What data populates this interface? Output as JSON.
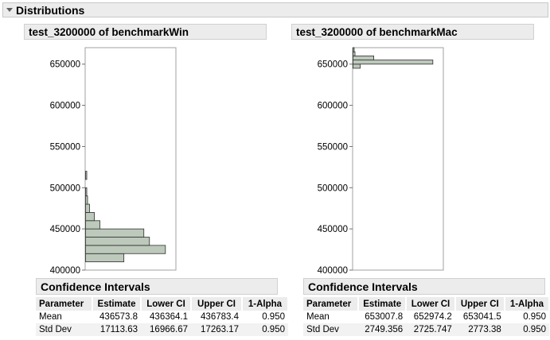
{
  "outline": {
    "title": "Distributions"
  },
  "panels": [
    {
      "id": "win",
      "title": "test_3200000 of benchmarkWin",
      "ci_title": "Confidence Intervals",
      "ci_columns": [
        "Parameter",
        "Estimate",
        "Lower CI",
        "Upper CI",
        "1-Alpha"
      ],
      "ci_rows": [
        [
          "Mean",
          "436573.8",
          "436364.1",
          "436783.4",
          "0.950"
        ],
        [
          "Std Dev",
          "17113.63",
          "16966.67",
          "17263.17",
          "0.950"
        ]
      ]
    },
    {
      "id": "mac",
      "title": "test_3200000 of benchmarkMac",
      "ci_title": "Confidence Intervals",
      "ci_columns": [
        "Parameter",
        "Estimate",
        "Lower CI",
        "Upper CI",
        "1-Alpha"
      ],
      "ci_rows": [
        [
          "Mean",
          "653007.8",
          "652974.2",
          "653041.5",
          "0.950"
        ],
        [
          "Std Dev",
          "2749.356",
          "2725.747",
          "2773.38",
          "0.950"
        ]
      ]
    }
  ],
  "chart_data": [
    {
      "type": "bar",
      "orientation": "horizontal-histogram",
      "title": "test_3200000 of benchmarkWin",
      "ylim": [
        400000,
        670000
      ],
      "yticks": [
        400000,
        450000,
        500000,
        550000,
        600000,
        650000
      ],
      "bins": [
        {
          "lo": 410000,
          "hi": 420000,
          "relcount": 0.48
        },
        {
          "lo": 420000,
          "hi": 430000,
          "relcount": 1.0
        },
        {
          "lo": 430000,
          "hi": 440000,
          "relcount": 0.8
        },
        {
          "lo": 440000,
          "hi": 450000,
          "relcount": 0.73
        },
        {
          "lo": 450000,
          "hi": 460000,
          "relcount": 0.18
        },
        {
          "lo": 460000,
          "hi": 470000,
          "relcount": 0.11
        },
        {
          "lo": 470000,
          "hi": 480000,
          "relcount": 0.05
        },
        {
          "lo": 480000,
          "hi": 490000,
          "relcount": 0.025
        },
        {
          "lo": 490000,
          "hi": 500000,
          "relcount": 0.015
        },
        {
          "lo": 510000,
          "hi": 520000,
          "relcount": 0.015
        }
      ],
      "bar_color": "#bdc9bb"
    },
    {
      "type": "bar",
      "orientation": "horizontal-histogram",
      "title": "test_3200000 of benchmarkMac",
      "ylim": [
        400000,
        670000
      ],
      "yticks": [
        400000,
        450000,
        500000,
        550000,
        600000,
        650000
      ],
      "bins": [
        {
          "lo": 645000,
          "hi": 650000,
          "relcount": 0.09
        },
        {
          "lo": 650000,
          "hi": 655000,
          "relcount": 1.0
        },
        {
          "lo": 655000,
          "hi": 660000,
          "relcount": 0.26
        },
        {
          "lo": 660000,
          "hi": 665000,
          "relcount": 0.025
        },
        {
          "lo": 665000,
          "hi": 670000,
          "relcount": 0.015
        }
      ],
      "bar_color": "#bdc9bb"
    }
  ]
}
